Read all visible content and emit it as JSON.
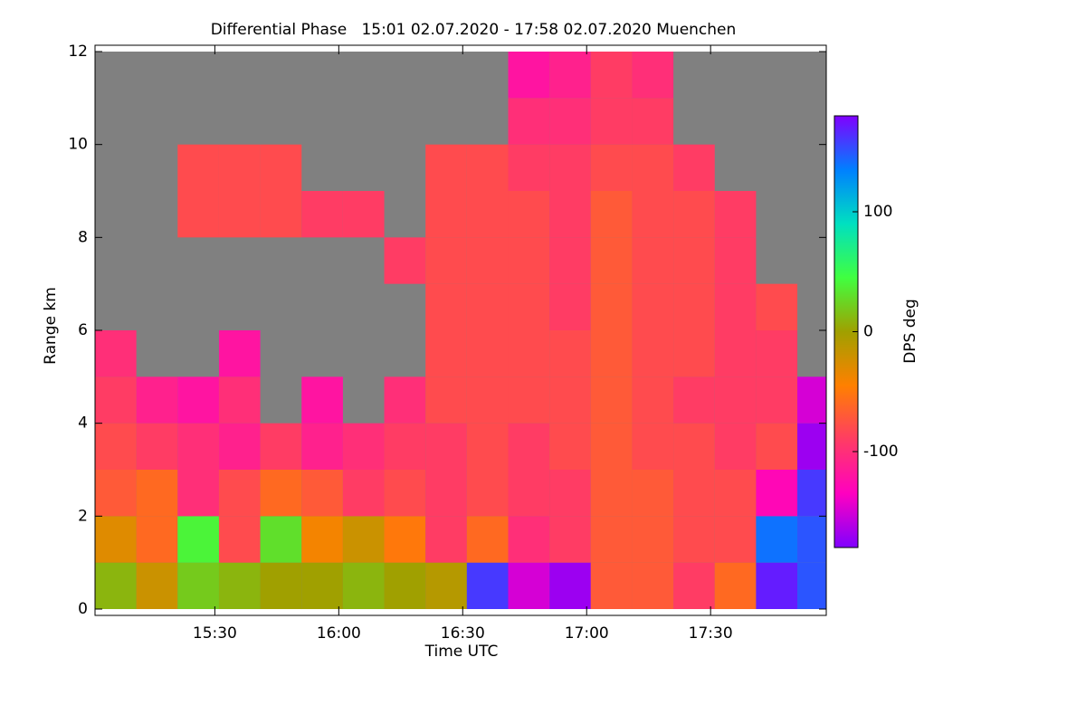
{
  "chart_data": {
    "type": "heatmap",
    "title": "Differential Phase   15:01 02.07.2020 - 17:58 02.07.2020 Muenchen",
    "x_label": "Time UTC",
    "y_label": "Range km",
    "colorbar_label": "DPS deg",
    "x": [
      "15:01",
      "15:11",
      "15:21",
      "15:31",
      "15:41",
      "15:51",
      "16:01",
      "16:11",
      "16:21",
      "16:31",
      "16:41",
      "16:51",
      "17:01",
      "17:11",
      "17:21",
      "17:31",
      "17:41",
      "17:51",
      "17:58"
    ],
    "y": [
      0,
      1,
      2,
      3,
      4,
      5,
      6,
      7,
      8,
      9,
      10,
      11,
      12
    ],
    "z": [
      [
        10,
        -20,
        20,
        10,
        0,
        0,
        10,
        0,
        -10,
        160,
        -150,
        -170,
        -70,
        -70,
        -90,
        -60,
        170,
        150
      ],
      [
        -30,
        -60,
        40,
        -80,
        30,
        -40,
        -20,
        -50,
        -90,
        -60,
        -100,
        -90,
        -70,
        -70,
        -80,
        -80,
        140,
        150
      ],
      [
        -70,
        -60,
        -100,
        -80,
        -60,
        -70,
        -90,
        -80,
        -90,
        -80,
        -90,
        -90,
        -70,
        -70,
        -80,
        -80,
        -130,
        160
      ],
      [
        -80,
        -90,
        -100,
        -110,
        -90,
        -110,
        -100,
        -90,
        -90,
        -80,
        -90,
        -80,
        -70,
        -80,
        -80,
        -90,
        -80,
        -170
      ],
      [
        -90,
        -110,
        -120,
        -100,
        null,
        -120,
        null,
        -100,
        -80,
        -80,
        -80,
        -80,
        -70,
        -80,
        -90,
        -90,
        -90,
        -150
      ],
      [
        -100,
        null,
        null,
        -120,
        null,
        null,
        null,
        null,
        -80,
        -80,
        -80,
        -80,
        -70,
        -80,
        -80,
        -90,
        -90,
        null
      ],
      [
        null,
        null,
        null,
        null,
        null,
        null,
        null,
        null,
        -80,
        -80,
        -80,
        -90,
        -70,
        -80,
        -80,
        -90,
        -80,
        null
      ],
      [
        null,
        null,
        null,
        null,
        null,
        null,
        null,
        -90,
        -80,
        -80,
        -80,
        -90,
        -70,
        -80,
        -80,
        -90,
        null,
        null
      ],
      [
        null,
        null,
        -80,
        -80,
        -80,
        -90,
        -90,
        null,
        -80,
        -80,
        -80,
        -90,
        -70,
        -80,
        -80,
        -90,
        null,
        null
      ],
      [
        null,
        null,
        -80,
        -80,
        -80,
        null,
        null,
        null,
        -80,
        -80,
        -90,
        -90,
        -80,
        -80,
        -90,
        null,
        null,
        null
      ],
      [
        null,
        null,
        null,
        null,
        null,
        null,
        null,
        null,
        null,
        null,
        -100,
        -100,
        -90,
        -90,
        null,
        null,
        null,
        null
      ],
      [
        null,
        null,
        null,
        null,
        null,
        null,
        null,
        null,
        null,
        null,
        -120,
        -110,
        -90,
        -100,
        null,
        null,
        null,
        null
      ]
    ],
    "xlim": [
      "15:01",
      "17:58"
    ],
    "xticks": [
      "15:30",
      "16:00",
      "16:30",
      "17:00",
      "17:30"
    ],
    "ylim": [
      0,
      12
    ],
    "yticks": [
      0,
      2,
      4,
      6,
      8,
      10,
      12
    ],
    "zlim": [
      -180,
      180
    ],
    "zticks": [
      -100,
      0,
      100
    ],
    "colormap": [
      "#8000ff",
      "#ff00c0",
      "#ff3c64",
      "#ff8000",
      "#a0a000",
      "#40ff40",
      "#00e0c0",
      "#0080ff",
      "#8000ff"
    ],
    "background_color": "#808080"
  }
}
